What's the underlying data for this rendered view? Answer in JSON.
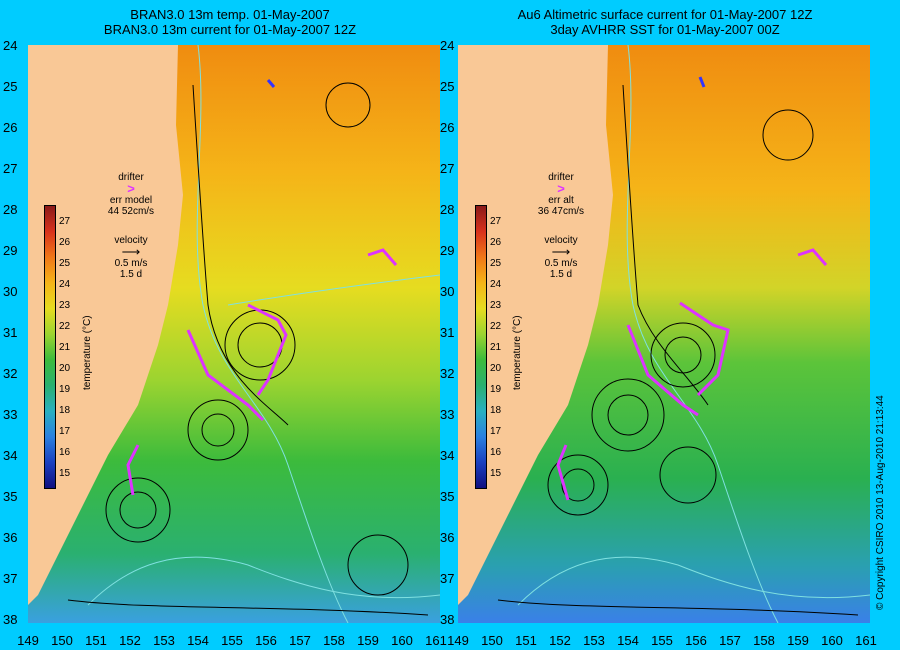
{
  "left_panel": {
    "title_line1": "BRAN3.0 13m temp. 01-May-2007",
    "title_line2": "BRAN3.0 13m current for 01-May-2007 12Z",
    "legend": {
      "drifter": "drifter",
      "err_label": "err model",
      "err_value": "44 52cm/s",
      "velocity": "velocity",
      "vel_scale": "0.5 m/s",
      "vel_time": "1.5 d"
    }
  },
  "right_panel": {
    "title_line1": "Au6 Altimetric surface current for 01-May-2007 12Z",
    "title_line2": "3day AVHRR SST for 01-May-2007 00Z",
    "legend": {
      "drifter": "drifter",
      "err_label": "err alt",
      "err_value": "36 47cm/s",
      "velocity": "velocity",
      "vel_scale": "0.5 m/s",
      "vel_time": "1.5 d"
    }
  },
  "colorbar": {
    "label": "temperature (°C)",
    "ticks": [
      "27",
      "26",
      "25",
      "24",
      "23",
      "22",
      "21",
      "20",
      "19",
      "18",
      "17",
      "16",
      "15"
    ]
  },
  "lat_labels": [
    "24",
    "25",
    "26",
    "27",
    "28",
    "29",
    "30",
    "31",
    "32",
    "33",
    "34",
    "35",
    "36",
    "37",
    "38"
  ],
  "lon_labels": [
    "149",
    "150",
    "151",
    "152",
    "153",
    "154",
    "155",
    "156",
    "157",
    "158",
    "159",
    "160",
    "161"
  ],
  "copyright": "© Copyright CSIRO 2010   13-Aug-2010 21:13:44",
  "colors": {
    "background": "#00ccff",
    "land": "#f9c896",
    "drifter": "#dd33ff",
    "contour": "#7fe0e0"
  }
}
